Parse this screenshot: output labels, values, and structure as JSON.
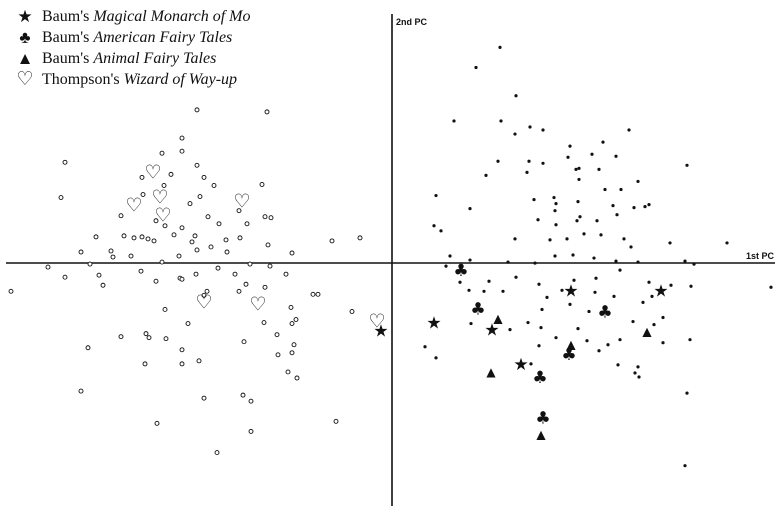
{
  "legend": {
    "items": [
      {
        "symbol": "★",
        "prefix": "Baum's ",
        "title": "Magical Monarch of Mo"
      },
      {
        "symbol": "♣",
        "prefix": "Baum's ",
        "title": "American Fairy Tales"
      },
      {
        "symbol": "▲",
        "prefix": "Baum's ",
        "title": "Animal Fairy Tales"
      },
      {
        "symbol": "♡",
        "prefix": "Thompson's ",
        "title": "Wizard of Way-up"
      }
    ]
  },
  "chart_data": {
    "type": "scatter",
    "title": "",
    "xlabel": "1st PC",
    "ylabel": "2nd PC",
    "xlim": [
      -3.9,
      3.85
    ],
    "ylim": [
      -2.45,
      2.57
    ],
    "grid": false,
    "legend_position": "top-left",
    "series": [
      {
        "name": "Thompson's Wizard of Way-up",
        "marker": "heart",
        "points": [
          [
            -2.37,
            0.86
          ],
          [
            -2.56,
            0.53
          ],
          [
            -2.3,
            0.61
          ],
          [
            -2.27,
            0.43
          ],
          [
            -1.48,
            0.57
          ],
          [
            -1.86,
            -0.43
          ],
          [
            -1.32,
            -0.45
          ],
          [
            -0.13,
            -0.62
          ]
        ]
      },
      {
        "name": "Baum's Magical Monarch of Mo",
        "marker": "star",
        "points": [
          [
            -0.09,
            -0.72
          ],
          [
            0.44,
            -0.64
          ],
          [
            1.02,
            -0.71
          ],
          [
            1.31,
            -1.05
          ],
          [
            1.81,
            -0.32
          ],
          [
            2.71,
            -0.32
          ]
        ]
      },
      {
        "name": "Baum's American Fairy Tales",
        "marker": "club",
        "points": [
          [
            0.71,
            -0.12
          ],
          [
            0.88,
            -0.5
          ],
          [
            1.79,
            -0.95
          ],
          [
            1.5,
            -1.18
          ],
          [
            2.15,
            -0.53
          ],
          [
            1.53,
            -1.58
          ]
        ]
      },
      {
        "name": "Baum's Animal Fairy Tales",
        "marker": "triangle",
        "points": [
          [
            1.08,
            -0.59
          ],
          [
            1.01,
            -1.12
          ],
          [
            1.81,
            -0.85
          ],
          [
            2.57,
            -0.72
          ],
          [
            1.51,
            -1.74
          ]
        ]
      },
      {
        "name": "",
        "marker": "open-circle",
        "points": [
          [
            -1.93,
            1.48
          ],
          [
            -2.08,
            1.2
          ],
          [
            -2.08,
            1.07
          ],
          [
            -1.93,
            0.93
          ],
          [
            -1.23,
            1.46
          ],
          [
            -2.28,
            1.05
          ],
          [
            -2.19,
            0.84
          ],
          [
            -1.86,
            0.81
          ],
          [
            -1.76,
            0.73
          ],
          [
            -1.9,
            0.62
          ],
          [
            -1.28,
            0.74
          ],
          [
            -3.25,
            0.96
          ],
          [
            -3.29,
            0.61
          ],
          [
            -2.48,
            0.81
          ],
          [
            -2.26,
            0.73
          ],
          [
            -2.47,
            0.64
          ],
          [
            -2.0,
            0.55
          ],
          [
            -2.69,
            0.43
          ],
          [
            -2.34,
            0.38
          ],
          [
            -2.25,
            0.33
          ],
          [
            -2.08,
            0.31
          ],
          [
            -1.82,
            0.42
          ],
          [
            -1.51,
            0.48
          ],
          [
            -1.25,
            0.42
          ],
          [
            -2.94,
            0.22
          ],
          [
            -2.56,
            0.21
          ],
          [
            -2.48,
            0.22
          ],
          [
            -2.36,
            0.18
          ],
          [
            -2.16,
            0.24
          ],
          [
            -1.98,
            0.17
          ],
          [
            -2.11,
            0.03
          ],
          [
            -2.28,
            -0.03
          ],
          [
            -1.71,
            0.35
          ],
          [
            -1.43,
            0.35
          ],
          [
            -1.19,
            0.41
          ],
          [
            -1.22,
            0.14
          ],
          [
            -1.5,
            0.21
          ],
          [
            -1.64,
            0.19
          ],
          [
            -1.79,
            0.12
          ],
          [
            -1.93,
            0.09
          ],
          [
            -1.63,
            0.07
          ],
          [
            -1.95,
            0.23
          ],
          [
            -2.42,
            0.2
          ],
          [
            -2.66,
            0.23
          ],
          [
            -2.79,
            0.08
          ],
          [
            -3.09,
            0.07
          ],
          [
            -0.98,
            0.06
          ],
          [
            -0.58,
            0.18
          ],
          [
            -2.59,
            0.03
          ],
          [
            -2.77,
            0.02
          ],
          [
            -3.0,
            -0.05
          ],
          [
            -3.25,
            -0.18
          ],
          [
            -3.42,
            -0.08
          ],
          [
            -3.79,
            -0.32
          ],
          [
            -2.91,
            -0.16
          ],
          [
            -2.87,
            -0.26
          ],
          [
            -2.49,
            -0.12
          ],
          [
            -2.34,
            -0.22
          ],
          [
            -2.1,
            -0.19
          ],
          [
            -1.94,
            -0.15
          ],
          [
            -1.72,
            -0.09
          ],
          [
            -1.55,
            -0.15
          ],
          [
            -1.4,
            -0.05
          ],
          [
            -1.2,
            -0.07
          ],
          [
            -1.04,
            -0.15
          ],
          [
            -1.25,
            -0.28
          ],
          [
            -1.44,
            -0.25
          ],
          [
            -2.25,
            -0.5
          ],
          [
            -1.86,
            -0.36
          ],
          [
            -2.08,
            -0.2
          ],
          [
            -1.83,
            -0.32
          ],
          [
            -2.02,
            -0.64
          ],
          [
            -1.51,
            -0.32
          ],
          [
            -0.99,
            -0.48
          ],
          [
            -0.77,
            -0.35
          ],
          [
            -0.72,
            -0.35
          ],
          [
            -1.26,
            -0.63
          ],
          [
            -0.98,
            -0.64
          ],
          [
            -1.13,
            -0.75
          ],
          [
            -0.96,
            -0.85
          ],
          [
            -0.94,
            -0.6
          ],
          [
            -2.44,
            -0.74
          ],
          [
            -2.41,
            -0.78
          ],
          [
            -1.46,
            -0.82
          ],
          [
            -1.12,
            -0.95
          ],
          [
            -1.02,
            -1.12
          ],
          [
            -2.69,
            -0.77
          ],
          [
            -2.24,
            -0.79
          ],
          [
            -2.08,
            -0.9
          ],
          [
            -2.08,
            -1.04
          ],
          [
            -1.91,
            -1.01
          ],
          [
            -2.45,
            -1.04
          ],
          [
            -0.98,
            -0.93
          ],
          [
            -3.02,
            -0.88
          ],
          [
            -1.86,
            -1.38
          ],
          [
            -1.47,
            -1.35
          ],
          [
            -1.39,
            -1.41
          ],
          [
            -3.09,
            -1.31
          ],
          [
            -2.33,
            -1.63
          ],
          [
            -1.39,
            -1.71
          ],
          [
            -0.54,
            -1.61
          ],
          [
            -0.38,
            -0.52
          ],
          [
            -0.3,
            0.21
          ],
          [
            -0.93,
            -1.18
          ],
          [
            -1.73,
            -1.92
          ]
        ]
      },
      {
        "name": "",
        "marker": "dot",
        "points": [
          [
            0.86,
            1.9
          ],
          [
            1.11,
            1.37
          ],
          [
            1.26,
            1.62
          ],
          [
            1.4,
            1.31
          ],
          [
            1.25,
            1.24
          ],
          [
            1.53,
            1.28
          ],
          [
            1.8,
            1.12
          ],
          [
            1.78,
            1.01
          ],
          [
            0.64,
            1.37
          ],
          [
            0.96,
            0.83
          ],
          [
            1.37,
            0.86
          ],
          [
            1.08,
            0.97
          ],
          [
            1.39,
            0.97
          ],
          [
            1.89,
            0.9
          ],
          [
            2.13,
            1.16
          ],
          [
            2.26,
            1.02
          ],
          [
            2.39,
            1.28
          ],
          [
            2.02,
            1.04
          ],
          [
            1.53,
            0.95
          ],
          [
            1.86,
            0.89
          ],
          [
            2.09,
            0.89
          ],
          [
            1.89,
            0.79
          ],
          [
            1.64,
            0.61
          ],
          [
            2.48,
            0.77
          ],
          [
            2.15,
            0.69
          ],
          [
            0.46,
            0.63
          ],
          [
            1.44,
            0.59
          ],
          [
            1.66,
            0.55
          ],
          [
            1.88,
            0.57
          ],
          [
            2.31,
            0.69
          ],
          [
            2.59,
            0.54
          ],
          [
            2.97,
            0.93
          ],
          [
            2.23,
            0.53
          ],
          [
            2.44,
            0.51
          ],
          [
            2.55,
            0.52
          ],
          [
            1.65,
            0.48
          ],
          [
            1.9,
            0.42
          ],
          [
            0.44,
            0.33
          ],
          [
            0.51,
            0.28
          ],
          [
            1.48,
            0.39
          ],
          [
            1.66,
            0.34
          ],
          [
            1.87,
            0.38
          ],
          [
            2.07,
            0.38
          ],
          [
            2.27,
            0.44
          ],
          [
            2.11,
            0.24
          ],
          [
            2.34,
            0.2
          ],
          [
            2.8,
            0.16
          ],
          [
            3.37,
            0.16
          ],
          [
            1.25,
            0.2
          ],
          [
            1.6,
            0.19
          ],
          [
            1.77,
            0.2
          ],
          [
            1.94,
            0.25
          ],
          [
            2.41,
            0.12
          ],
          [
            0.6,
            0.03
          ],
          [
            0.56,
            -0.07
          ],
          [
            0.8,
            -0.01
          ],
          [
            1.18,
            -0.03
          ],
          [
            1.45,
            -0.04
          ],
          [
            1.65,
            0.03
          ],
          [
            1.83,
            0.04
          ],
          [
            2.04,
            0.01
          ],
          [
            2.26,
            -0.02
          ],
          [
            2.48,
            -0.03
          ],
          [
            2.95,
            -0.02
          ],
          [
            3.04,
            -0.05
          ],
          [
            0.7,
            -0.23
          ],
          [
            0.79,
            -0.31
          ],
          [
            0.99,
            -0.22
          ],
          [
            1.26,
            -0.18
          ],
          [
            1.49,
            -0.25
          ],
          [
            1.72,
            -0.31
          ],
          [
            1.84,
            -0.21
          ],
          [
            2.06,
            -0.19
          ],
          [
            2.3,
            -0.11
          ],
          [
            2.59,
            -0.23
          ],
          [
            2.81,
            -0.26
          ],
          [
            0.94,
            -0.32
          ],
          [
            1.13,
            -0.32
          ],
          [
            1.57,
            -0.38
          ],
          [
            1.8,
            -0.45
          ],
          [
            2.05,
            -0.33
          ],
          [
            2.24,
            -0.37
          ],
          [
            2.53,
            -0.43
          ],
          [
            1.52,
            -0.5
          ],
          [
            1.99,
            -0.52
          ],
          [
            2.43,
            -0.62
          ],
          [
            2.64,
            -0.65
          ],
          [
            0.81,
            -0.64
          ],
          [
            1.38,
            -0.63
          ],
          [
            1.2,
            -0.7
          ],
          [
            1.51,
            -0.68
          ],
          [
            1.88,
            -0.69
          ],
          [
            1.97,
            -0.81
          ],
          [
            2.18,
            -0.85
          ],
          [
            2.3,
            -0.8
          ],
          [
            1.66,
            -0.78
          ],
          [
            1.79,
            -0.95
          ],
          [
            2.09,
            -0.91
          ],
          [
            1.49,
            -0.86
          ],
          [
            0.35,
            -0.87
          ],
          [
            0.46,
            -0.98
          ],
          [
            1.41,
            -1.04
          ],
          [
            2.28,
            -1.05
          ],
          [
            2.48,
            -1.07
          ],
          [
            2.45,
            -1.13
          ],
          [
            3.01,
            -0.27
          ],
          [
            2.73,
            -0.58
          ],
          [
            2.73,
            -0.83
          ],
          [
            2.49,
            -1.17
          ],
          [
            2.97,
            -1.33
          ],
          [
            2.95,
            -2.05
          ],
          [
            3.81,
            -0.28
          ],
          [
            1.1,
            2.1
          ],
          [
            3.0,
            -0.8
          ],
          [
            2.62,
            -0.37
          ],
          [
            0.8,
            0.5
          ]
        ]
      }
    ]
  }
}
